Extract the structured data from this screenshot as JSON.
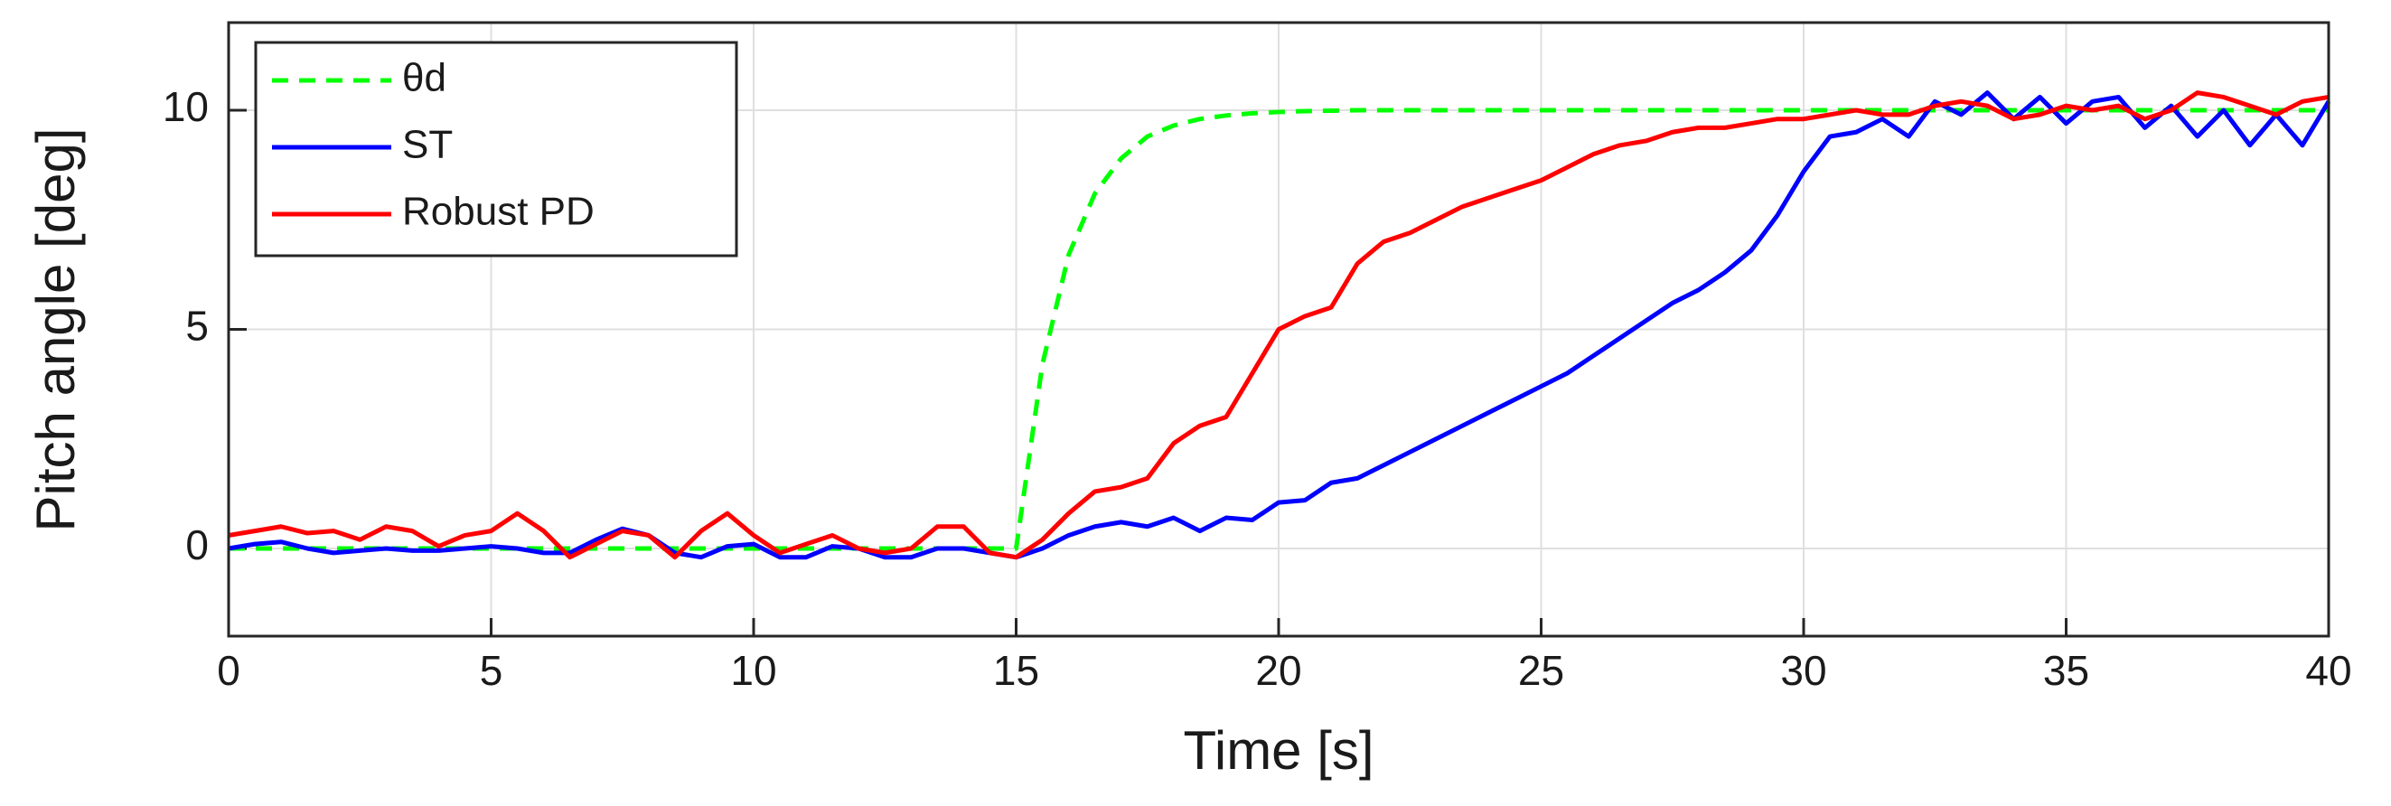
{
  "chart_data": {
    "type": "line",
    "xlabel": "Time [s]",
    "ylabel": "Pitch angle [deg]",
    "x": [
      0,
      0.5,
      1,
      1.5,
      2,
      2.5,
      3,
      3.5,
      4,
      4.5,
      5,
      5.5,
      6,
      6.5,
      7,
      7.5,
      8,
      8.5,
      9,
      9.5,
      10,
      10.5,
      11,
      11.5,
      12,
      12.5,
      13,
      13.5,
      14,
      14.5,
      15,
      15.5,
      16,
      16.5,
      17,
      17.5,
      18,
      18.5,
      19,
      19.5,
      20,
      20.5,
      21,
      21.5,
      22,
      22.5,
      23,
      23.5,
      24,
      24.5,
      25,
      25.5,
      26,
      26.5,
      27,
      27.5,
      28,
      28.5,
      29,
      29.5,
      30,
      30.5,
      31,
      31.5,
      32,
      32.5,
      33,
      33.5,
      34,
      34.5,
      35,
      35.5,
      36,
      36.5,
      37,
      37.5,
      38,
      38.5,
      39,
      39.5,
      40
    ],
    "series": [
      {
        "name": "θd",
        "color": "#00ff00",
        "dashed": true,
        "values": [
          0,
          0,
          0,
          0,
          0,
          0,
          0,
          0,
          0,
          0,
          0,
          0,
          0,
          0,
          0,
          0,
          0,
          0,
          0,
          0,
          0,
          0,
          0,
          0,
          0,
          0,
          0,
          0,
          0,
          0,
          0,
          4.2,
          6.7,
          8.1,
          8.9,
          9.4,
          9.65,
          9.8,
          9.88,
          9.93,
          9.96,
          9.98,
          9.99,
          10,
          10,
          10,
          10,
          10,
          10,
          10,
          10,
          10,
          10,
          10,
          10,
          10,
          10,
          10,
          10,
          10,
          10,
          10,
          10,
          10,
          10,
          10,
          10,
          10,
          10,
          10,
          10,
          10,
          10,
          10,
          10,
          10,
          10,
          10,
          10,
          10,
          10
        ]
      },
      {
        "name": "ST",
        "color": "#0000ff",
        "dashed": false,
        "values": [
          0,
          0.1,
          0.15,
          0,
          -0.1,
          -0.05,
          0,
          -0.05,
          -0.05,
          0,
          0.05,
          0,
          -0.1,
          -0.1,
          0.2,
          0.45,
          0.3,
          -0.1,
          -0.2,
          0.05,
          0.1,
          -0.2,
          -0.2,
          0.05,
          0,
          -0.2,
          -0.2,
          0,
          0,
          -0.1,
          -0.2,
          0,
          0.3,
          0.5,
          0.6,
          0.5,
          0.7,
          0.4,
          0.7,
          0.65,
          1.05,
          1.1,
          1.5,
          1.6,
          1.9,
          2.2,
          2.5,
          2.8,
          3.1,
          3.4,
          3.7,
          4.0,
          4.4,
          4.8,
          5.2,
          5.6,
          5.9,
          6.3,
          6.8,
          7.6,
          8.6,
          9.4,
          9.5,
          9.8,
          9.4,
          10.2,
          9.9,
          10.4,
          9.8,
          10.3,
          9.7,
          10.2,
          10.3,
          9.6,
          10.1,
          9.4,
          10.0,
          9.2,
          9.9,
          9.2,
          10.2
        ]
      },
      {
        "name": "Robust PD",
        "color": "#ff0000",
        "dashed": false,
        "values": [
          0.3,
          0.4,
          0.5,
          0.35,
          0.4,
          0.2,
          0.5,
          0.4,
          0.05,
          0.3,
          0.4,
          0.8,
          0.4,
          -0.2,
          0.1,
          0.4,
          0.3,
          -0.2,
          0.4,
          0.8,
          0.3,
          -0.1,
          0.1,
          0.3,
          0,
          -0.1,
          0,
          0.5,
          0.5,
          -0.1,
          -0.2,
          0.2,
          0.8,
          1.3,
          1.4,
          1.6,
          2.4,
          2.8,
          3.0,
          4.0,
          5.0,
          5.3,
          5.5,
          6.5,
          7.0,
          7.2,
          7.5,
          7.8,
          8.0,
          8.2,
          8.4,
          8.7,
          9.0,
          9.2,
          9.3,
          9.5,
          9.6,
          9.6,
          9.7,
          9.8,
          9.8,
          9.9,
          10.0,
          9.9,
          9.9,
          10.1,
          10.2,
          10.1,
          9.8,
          9.9,
          10.1,
          10.0,
          10.1,
          9.8,
          10.0,
          10.4,
          10.3,
          10.1,
          9.9,
          10.2,
          10.3
        ]
      }
    ],
    "xlim": [
      0,
      40
    ],
    "xticks": [
      0,
      5,
      10,
      15,
      20,
      25,
      30,
      35,
      40
    ],
    "ylim": [
      -2,
      12
    ],
    "yticks": [
      0,
      5,
      10
    ],
    "grid": true,
    "legend": "northwest"
  }
}
